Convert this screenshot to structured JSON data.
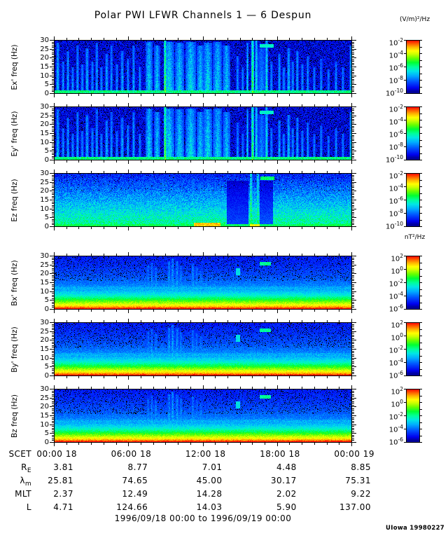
{
  "title": "Polar PWI LFWR Channels 1 — 6 Despun",
  "credit": "UIowa 19980227",
  "units": {
    "electric": "(V/m)²/Hz",
    "magnetic": "nT²/Hz"
  },
  "chart_data": {
    "type": "heatmap",
    "subtype": "multi-panel time-frequency spectrogram",
    "title": "Polar PWI LFWR Channels 1 — 6 Despun",
    "time_range_label": "1996/09/18 00:00 to 1996/09/19 00:00",
    "x_axis": {
      "label": "SCET",
      "tick_labels": [
        "00:00 18",
        "06:00 18",
        "12:00 18",
        "18:00 18",
        "00:00 19"
      ],
      "minor_tick_hours": 1,
      "major_tick_hours": 6,
      "total_hours": 24
    },
    "y_axis": {
      "unit": "Hz",
      "min": 0,
      "max": 30,
      "major_ticks": [
        0,
        5,
        10,
        15,
        20,
        25,
        30
      ],
      "minor_tick_step": 1
    },
    "colormap": [
      [
        0.02,
        "#000082"
      ],
      [
        0.1,
        "#0000ee"
      ],
      [
        0.22,
        "#0050ff"
      ],
      [
        0.33,
        "#00aaff"
      ],
      [
        0.42,
        "#00e6e6"
      ],
      [
        0.5,
        "#00ff99"
      ],
      [
        0.58,
        "#00ff33"
      ],
      [
        0.66,
        "#66ff00"
      ],
      [
        0.74,
        "#ccff00"
      ],
      [
        0.8,
        "#ffff00"
      ],
      [
        0.87,
        "#ffb400"
      ],
      [
        0.93,
        "#ff6400"
      ],
      [
        1.0,
        "#ff0000"
      ]
    ],
    "panels": [
      {
        "id": "ex",
        "ylabel": "Ex' freq (Hz)",
        "unit": "(V/m)²/Hz",
        "colorbar_ticks": [
          "10^-2",
          "10^-4",
          "10^-6",
          "10^-8",
          "10^-10"
        ],
        "style": "e",
        "seed": 11
      },
      {
        "id": "ey",
        "ylabel": "Ey' freq (Hz)",
        "unit": "(V/m)²/Hz",
        "colorbar_ticks": [
          "10^-2",
          "10^-4",
          "10^-6",
          "10^-8",
          "10^-10"
        ],
        "style": "e",
        "seed": 22
      },
      {
        "id": "ez",
        "ylabel": "Ez freq (Hz)",
        "unit": "(V/m)²/Hz",
        "colorbar_ticks": [
          "10^-2",
          "10^-4",
          "10^-6",
          "10^-8",
          "10^-10"
        ],
        "style": "ez",
        "seed": 33
      },
      {
        "id": "bx",
        "ylabel": "Bx' freq (Hz)",
        "unit": "nT²/Hz",
        "colorbar_ticks": [
          "10^2",
          "10^0",
          "10^-2",
          "10^-4",
          "10^-6"
        ],
        "style": "b",
        "seed": 44
      },
      {
        "id": "by",
        "ylabel": "By' freq (Hz)",
        "unit": "nT²/Hz",
        "colorbar_ticks": [
          "10^2",
          "10^0",
          "10^-2",
          "10^-4",
          "10^-6"
        ],
        "style": "b",
        "seed": 55
      },
      {
        "id": "bz",
        "ylabel": "Bz freq (Hz)",
        "unit": "nT²/Hz",
        "colorbar_ticks": [
          "10^2",
          "10^0",
          "10^-2",
          "10^-4",
          "10^-6"
        ],
        "style": "b",
        "seed": 66
      }
    ],
    "ephemeris": {
      "rows": [
        {
          "label": "SCET",
          "sub": "",
          "values": [
            "00:00 18",
            "06:00 18",
            "12:00 18",
            "18:00 18",
            "00:00 19"
          ]
        },
        {
          "label": "R",
          "sub": "E",
          "values": [
            "3.81",
            "8.77",
            "7.01",
            "4.48",
            "8.85"
          ]
        },
        {
          "label": "λ",
          "sub": "m",
          "values": [
            "25.81",
            "74.65",
            "45.00",
            "30.17",
            "75.31"
          ]
        },
        {
          "label": "MLT",
          "sub": "",
          "values": [
            "2.37",
            "12.49",
            "14.28",
            "2.02",
            "9.22"
          ]
        },
        {
          "label": "L",
          "sub": "",
          "values": [
            "4.71",
            "124.66",
            "14.03",
            "5.90",
            "137.00"
          ]
        }
      ]
    },
    "render": {
      "e": {
        "bg": {
          "base": 0.1,
          "noise": 0.09,
          "speckle": 0.08
        },
        "bottom_band": {
          "freq": 1.8,
          "v": 0.52
        },
        "streaks": [
          [
            0.012,
            0.005,
            0.95,
            0.5
          ],
          [
            0.03,
            0.004,
            0.6,
            0.42
          ],
          [
            0.046,
            0.004,
            0.8,
            0.45
          ],
          [
            0.062,
            0.004,
            0.5,
            0.4
          ],
          [
            0.078,
            0.004,
            0.9,
            0.45
          ],
          [
            0.094,
            0.004,
            0.55,
            0.4
          ],
          [
            0.11,
            0.005,
            0.85,
            0.48
          ],
          [
            0.128,
            0.004,
            0.6,
            0.42
          ],
          [
            0.143,
            0.004,
            0.95,
            0.45
          ],
          [
            0.158,
            0.004,
            0.5,
            0.4
          ],
          [
            0.176,
            0.005,
            0.75,
            0.45
          ],
          [
            0.192,
            0.004,
            0.9,
            0.42
          ],
          [
            0.21,
            0.004,
            0.55,
            0.4
          ],
          [
            0.228,
            0.005,
            0.8,
            0.45
          ],
          [
            0.247,
            0.004,
            0.65,
            0.42
          ],
          [
            0.266,
            0.004,
            0.9,
            0.45
          ],
          [
            0.287,
            0.004,
            0.5,
            0.4
          ],
          [
            0.318,
            0.02,
            0.97,
            0.52
          ],
          [
            0.345,
            0.015,
            0.9,
            0.5
          ],
          [
            0.372,
            0.003,
            1.0,
            0.85
          ],
          [
            0.385,
            0.03,
            0.97,
            0.55
          ],
          [
            0.42,
            0.025,
            0.95,
            0.52
          ],
          [
            0.458,
            0.03,
            0.97,
            0.55
          ],
          [
            0.49,
            0.02,
            0.9,
            0.5
          ],
          [
            0.515,
            0.025,
            0.95,
            0.55
          ],
          [
            0.548,
            0.025,
            0.97,
            0.52
          ],
          [
            0.578,
            0.02,
            0.9,
            0.5
          ],
          [
            0.615,
            0.004,
            0.7,
            0.4
          ],
          [
            0.632,
            0.004,
            0.5,
            0.38
          ],
          [
            0.648,
            0.003,
            0.95,
            0.5
          ],
          [
            0.665,
            0.004,
            1.0,
            0.8
          ],
          [
            0.678,
            0.004,
            1.0,
            0.6
          ],
          [
            0.695,
            0.032,
            0.85,
            0.38
          ],
          [
            0.712,
            0.004,
            1.0,
            0.6
          ],
          [
            0.728,
            0.004,
            0.6,
            0.4
          ],
          [
            0.755,
            0.004,
            0.75,
            0.45
          ],
          [
            0.77,
            0.004,
            0.5,
            0.4
          ],
          [
            0.786,
            0.005,
            0.85,
            0.48
          ],
          [
            0.8,
            0.004,
            0.6,
            0.42
          ],
          [
            0.815,
            0.004,
            0.8,
            0.45
          ],
          [
            0.832,
            0.004,
            0.55,
            0.4
          ],
          [
            0.85,
            0.004,
            0.7,
            0.42
          ],
          [
            0.872,
            0.004,
            0.5,
            0.38
          ],
          [
            0.895,
            0.004,
            0.65,
            0.4
          ],
          [
            0.92,
            0.004,
            0.45,
            0.38
          ],
          [
            0.945,
            0.004,
            0.6,
            0.4
          ],
          [
            0.968,
            0.004,
            0.5,
            0.38
          ],
          [
            0.995,
            0.004,
            0.9,
            0.5
          ]
        ],
        "dashes": [
          [
            0.688,
            0.735,
            26,
            28,
            0.5
          ]
        ]
      },
      "ez": {
        "bg": {
          "bottom": 0.52,
          "top": 0.14,
          "noise": 0.1,
          "speckle": 0.02
        },
        "bottom_band": {
          "freq": 1.5,
          "v": 0.55
        },
        "streaks": [
          [
            0.012,
            0.005,
            0.9,
            0.42
          ],
          [
            0.03,
            0.004,
            0.7,
            0.38
          ],
          [
            0.05,
            0.004,
            0.85,
            0.4
          ],
          [
            0.07,
            0.004,
            0.6,
            0.36
          ],
          [
            0.09,
            0.005,
            0.9,
            0.42
          ],
          [
            0.11,
            0.004,
            0.65,
            0.38
          ],
          [
            0.13,
            0.004,
            0.85,
            0.4
          ],
          [
            0.155,
            0.004,
            0.6,
            0.36
          ],
          [
            0.175,
            0.005,
            0.9,
            0.42
          ],
          [
            0.195,
            0.004,
            0.7,
            0.38
          ],
          [
            0.215,
            0.004,
            0.8,
            0.4
          ],
          [
            0.24,
            0.004,
            0.6,
            0.36
          ],
          [
            0.265,
            0.004,
            0.75,
            0.4
          ],
          [
            0.29,
            0.004,
            0.55,
            0.36
          ],
          [
            0.315,
            0.006,
            0.85,
            0.42
          ],
          [
            0.34,
            0.005,
            0.7,
            0.4
          ],
          [
            0.365,
            0.006,
            0.9,
            0.44
          ],
          [
            0.39,
            0.005,
            0.75,
            0.4
          ],
          [
            0.415,
            0.006,
            0.85,
            0.44
          ],
          [
            0.44,
            0.005,
            0.65,
            0.4
          ],
          [
            0.465,
            0.006,
            0.9,
            0.44
          ],
          [
            0.49,
            0.005,
            0.8,
            0.42
          ],
          [
            0.515,
            0.006,
            0.9,
            0.44
          ],
          [
            0.54,
            0.005,
            0.75,
            0.4
          ],
          [
            0.565,
            0.005,
            0.85,
            0.42
          ],
          [
            0.615,
            0.004,
            0.6,
            0.34
          ],
          [
            0.635,
            0.004,
            0.75,
            0.36
          ],
          [
            0.66,
            0.004,
            1.0,
            0.8
          ],
          [
            0.683,
            0.004,
            1.0,
            0.72
          ],
          [
            0.745,
            0.004,
            0.8,
            0.4
          ],
          [
            0.765,
            0.005,
            0.9,
            0.42
          ],
          [
            0.785,
            0.004,
            0.7,
            0.38
          ],
          [
            0.81,
            0.004,
            0.85,
            0.4
          ],
          [
            0.835,
            0.004,
            0.6,
            0.36
          ],
          [
            0.86,
            0.004,
            0.8,
            0.4
          ],
          [
            0.885,
            0.004,
            0.65,
            0.38
          ],
          [
            0.915,
            0.004,
            0.75,
            0.4
          ],
          [
            0.945,
            0.004,
            0.6,
            0.36
          ],
          [
            0.975,
            0.004,
            0.7,
            0.38
          ]
        ],
        "patches": [
          [
            0.578,
            0.652,
            0,
            26,
            0.4
          ],
          [
            0.688,
            0.734,
            0,
            26,
            0.45
          ]
        ],
        "hotspots": [
          [
            0.468,
            0.558,
            0,
            2.2,
            0.85
          ],
          [
            0.655,
            0.69,
            0,
            1.5,
            0.8
          ]
        ],
        "dashes": [
          [
            0.692,
            0.738,
            26.3,
            28.2,
            0.6
          ]
        ]
      },
      "b": {
        "bg": {
          "noise": 0.05,
          "speckle": 0.1,
          "speckle_freq": 16
        },
        "profile": [
          [
            0,
            1.0
          ],
          [
            0.6,
            0.97
          ],
          [
            1.2,
            0.9
          ],
          [
            2,
            0.82
          ],
          [
            3,
            0.75
          ],
          [
            4.5,
            0.65
          ],
          [
            6,
            0.55
          ],
          [
            7.5,
            0.46
          ],
          [
            9,
            0.4
          ],
          [
            11,
            0.33
          ],
          [
            14,
            0.27
          ],
          [
            18,
            0.22
          ],
          [
            24,
            0.17
          ],
          [
            30,
            0.135
          ]
        ],
        "hband": {
          "f": 12,
          "hw": 0.8,
          "dv": 0.05
        },
        "streaks": [
          [
            0.315,
            0.006,
            0.82,
            0.44
          ],
          [
            0.327,
            0.005,
            0.88,
            0.46
          ],
          [
            0.341,
            0.006,
            0.78,
            0.44
          ],
          [
            0.385,
            0.006,
            0.9,
            0.5
          ],
          [
            0.397,
            0.006,
            0.95,
            0.52
          ],
          [
            0.412,
            0.007,
            0.9,
            0.5
          ],
          [
            0.425,
            0.005,
            0.82,
            0.46
          ],
          [
            0.465,
            0.006,
            0.86,
            0.46
          ],
          [
            0.478,
            0.005,
            0.8,
            0.44
          ],
          [
            0.492,
            0.006,
            0.76,
            0.43
          ],
          [
            0.53,
            0.004,
            0.5,
            0.36
          ]
        ],
        "dashes": [
          [
            0.61,
            0.623,
            19,
            23,
            0.46
          ],
          [
            0.688,
            0.727,
            24.8,
            26.6,
            0.55
          ]
        ]
      }
    }
  }
}
